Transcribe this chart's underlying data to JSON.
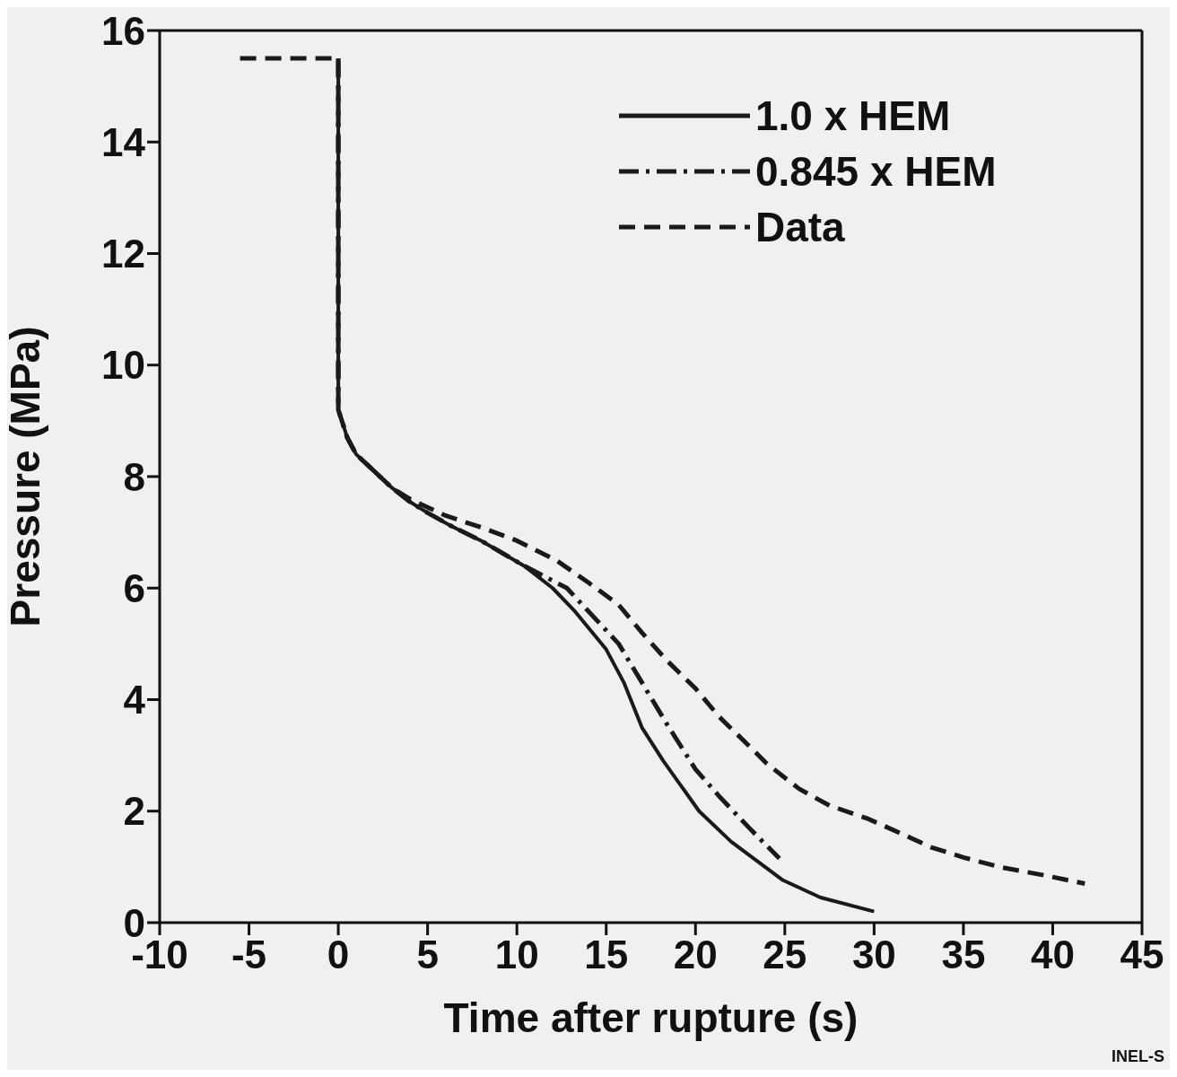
{
  "chart_data": {
    "type": "line",
    "xlabel": "Time after rupture (s)",
    "ylabel": "Pressure (MPa)",
    "xlim": [
      -10,
      45
    ],
    "xticks": [
      -10,
      -5,
      0,
      5,
      10,
      15,
      20,
      25,
      30,
      35,
      40,
      45
    ],
    "ylim": [
      0,
      16
    ],
    "yticks": [
      0,
      2,
      4,
      6,
      8,
      10,
      12,
      14,
      16
    ],
    "grid": false,
    "legend": "top right",
    "marker": "none",
    "annotations": [
      "INEL-S"
    ],
    "series": [
      {
        "name": "1.0 x HEM",
        "color": "#1a1a1a",
        "line_style": "solid",
        "x": [
          0,
          0,
          0.5,
          1,
          2,
          3,
          4,
          5,
          6.4,
          8,
          10.4,
          12,
          13.2,
          15,
          16,
          17,
          18.2,
          20.2,
          22,
          24.9,
          27,
          30
        ],
        "values": [
          15.5,
          9.2,
          8.7,
          8.4,
          8.1,
          7.8,
          7.55,
          7.35,
          7.1,
          6.85,
          6.4,
          6.0,
          5.6,
          4.9,
          4.3,
          3.5,
          2.9,
          2.0,
          1.45,
          0.76,
          0.45,
          0.2
        ]
      },
      {
        "name": "0.845 x HEM",
        "color": "#1a1a1a",
        "line_style": "dashdot",
        "x": [
          0,
          0,
          0.5,
          1,
          2,
          3,
          4,
          5,
          6.4,
          8,
          10.4,
          12.8,
          15.7,
          18.4,
          20,
          21.4,
          23,
          24.7
        ],
        "values": [
          15.5,
          9.2,
          8.7,
          8.4,
          8.1,
          7.8,
          7.55,
          7.35,
          7.1,
          6.85,
          6.4,
          6.0,
          5.0,
          3.56,
          2.75,
          2.24,
          1.7,
          1.15
        ]
      },
      {
        "name": "Data",
        "color": "#1a1a1a",
        "line_style": "dashed",
        "x": [
          -5.5,
          0,
          0,
          0.5,
          1,
          2,
          3,
          4,
          5,
          6,
          7.9,
          10,
          12.2,
          14,
          15.7,
          17,
          18.4,
          20,
          21.3,
          22.9,
          24,
          25.8,
          27.5,
          29.6,
          31.5,
          33.2,
          35,
          37,
          39.5,
          41.8
        ],
        "values": [
          15.5,
          15.5,
          9.2,
          8.7,
          8.4,
          8.1,
          7.8,
          7.6,
          7.45,
          7.3,
          7.1,
          6.85,
          6.5,
          6.1,
          5.7,
          5.2,
          4.7,
          4.2,
          3.7,
          3.2,
          2.85,
          2.4,
          2.1,
          1.87,
          1.6,
          1.35,
          1.17,
          1.0,
          0.85,
          0.7
        ]
      }
    ]
  }
}
